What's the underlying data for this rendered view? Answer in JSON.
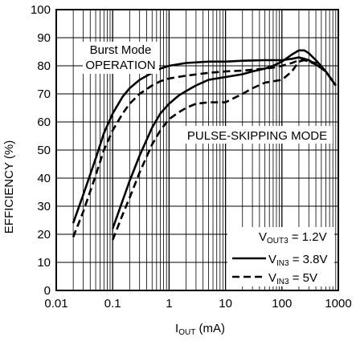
{
  "chart_data": {
    "type": "line",
    "xlabel": {
      "main": "I",
      "sub": "OUT",
      "rest": " (mA)"
    },
    "ylabel": "EFFICIENCY (%)",
    "xscale": "log",
    "xlim": [
      0.01,
      1000
    ],
    "ylim": [
      0,
      100
    ],
    "grid": true,
    "legend_position": "bottom-right",
    "x_ticks": [
      {
        "value": 0.01,
        "label": "0.01"
      },
      {
        "value": 0.1,
        "label": "0.1"
      },
      {
        "value": 1,
        "label": "1"
      },
      {
        "value": 10,
        "label": "10"
      },
      {
        "value": 100,
        "label": "100"
      },
      {
        "value": 1000,
        "label": "1000"
      }
    ],
    "y_ticks": [
      {
        "value": 0,
        "label": "0"
      },
      {
        "value": 10,
        "label": "10"
      },
      {
        "value": 20,
        "label": "20"
      },
      {
        "value": 30,
        "label": "30"
      },
      {
        "value": 40,
        "label": "40"
      },
      {
        "value": 50,
        "label": "50"
      },
      {
        "value": 60,
        "label": "60"
      },
      {
        "value": 70,
        "label": "70"
      },
      {
        "value": 80,
        "label": "80"
      },
      {
        "value": 90,
        "label": "90"
      },
      {
        "value": 100,
        "label": "100"
      }
    ],
    "series": [
      {
        "mode": "burst",
        "vin": "3.8V",
        "style": "solid",
        "x": [
          0.02,
          0.03,
          0.05,
          0.07,
          0.1,
          0.15,
          0.2,
          0.3,
          0.5,
          0.7,
          1,
          2,
          5,
          10,
          20,
          50,
          80,
          100,
          150,
          200,
          250,
          300,
          400,
          600,
          900
        ],
        "y": [
          24,
          34,
          47,
          56,
          63,
          69,
          72,
          75,
          77.5,
          79,
          80,
          81,
          81.5,
          81.5,
          81.8,
          82,
          82,
          82,
          82.5,
          83,
          82.5,
          82,
          80.5,
          78,
          73
        ]
      },
      {
        "mode": "burst",
        "vin": "5V",
        "style": "dashed",
        "x": [
          0.02,
          0.03,
          0.05,
          0.07,
          0.1,
          0.15,
          0.2,
          0.3,
          0.5,
          0.7,
          1,
          2,
          5,
          10,
          20,
          50,
          80,
          100,
          150,
          200,
          250,
          300,
          400,
          600,
          900
        ],
        "y": [
          19,
          28,
          41,
          50,
          57,
          63,
          66.5,
          70,
          73,
          74.5,
          75.5,
          76.5,
          77.5,
          78,
          78.3,
          79,
          79.5,
          80,
          81,
          82,
          82,
          81.5,
          80.5,
          78,
          73
        ]
      },
      {
        "mode": "pulse-skipping",
        "vin": "3.8V",
        "style": "solid",
        "x": [
          0.1,
          0.15,
          0.2,
          0.3,
          0.5,
          0.7,
          1,
          1.5,
          2,
          3,
          5,
          7,
          10,
          20,
          30,
          50,
          70,
          100,
          150,
          200,
          250,
          300,
          400,
          600,
          900
        ],
        "y": [
          22,
          32,
          39,
          48,
          58,
          63,
          66.5,
          69.5,
          71,
          73,
          75,
          75.5,
          76,
          77,
          78,
          79,
          80,
          81.5,
          84,
          85.5,
          85.5,
          84.5,
          82,
          78,
          73
        ]
      },
      {
        "mode": "pulse-skipping",
        "vin": "5V",
        "style": "dashed",
        "x": [
          0.1,
          0.15,
          0.2,
          0.3,
          0.5,
          0.7,
          1,
          1.5,
          2,
          3,
          5,
          7,
          10,
          20,
          30,
          50,
          70,
          100,
          150,
          200,
          250,
          300,
          400,
          600,
          900
        ],
        "y": [
          18,
          27,
          33,
          42,
          52,
          57,
          61,
          63.5,
          65,
          66.5,
          67,
          67,
          67,
          70,
          72,
          74,
          74.5,
          75,
          78,
          81.5,
          82,
          81.5,
          81,
          78,
          73
        ]
      }
    ],
    "annotations": {
      "burst_line1": "Burst Mode",
      "burst_line2": "OPERATION",
      "pulse": "PULSE-SKIPPING MODE"
    },
    "legend": {
      "vout": {
        "main": "V",
        "sub": "OUT3",
        "rest": " = 1.2V"
      },
      "solid": {
        "main": "V",
        "sub": "IN3",
        "rest": " = 3.8V"
      },
      "dashed": {
        "main": "V",
        "sub": "IN3",
        "rest": " = 5V"
      }
    }
  }
}
